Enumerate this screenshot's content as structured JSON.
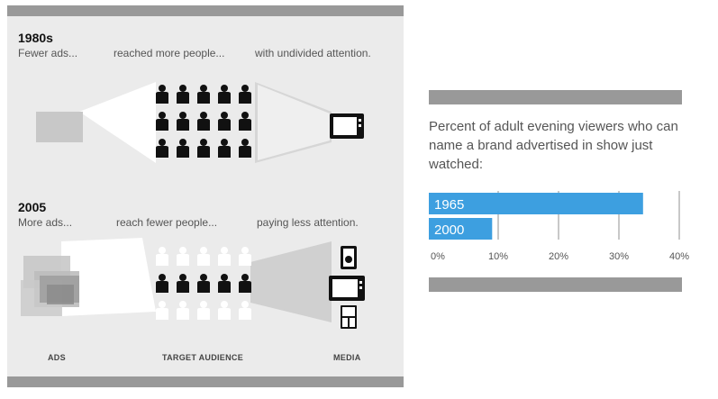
{
  "left": {
    "row1": {
      "year": "1980s",
      "captions": [
        "Fewer ads...",
        "reached more people...",
        "with undivided attention."
      ]
    },
    "row2": {
      "year": "2005",
      "captions": [
        "More ads...",
        "reach fewer people...",
        "paying less attention."
      ]
    },
    "footer": [
      "ADS",
      "TARGET AUDIENCE",
      "MEDIA"
    ]
  },
  "right": {
    "question": "Percent of adult evening viewers who can name a brand advertised in show just watched:"
  },
  "colors": {
    "bar": "#3d9fe0",
    "frame": "#999999",
    "figure": "#111111"
  },
  "chart_data": {
    "type": "bar",
    "orientation": "horizontal",
    "categories": [
      "1965",
      "2000"
    ],
    "values": [
      34,
      9
    ],
    "xlim": [
      0,
      40
    ],
    "ticks": [
      "0%",
      "10%",
      "20%",
      "30%",
      "40%"
    ]
  }
}
